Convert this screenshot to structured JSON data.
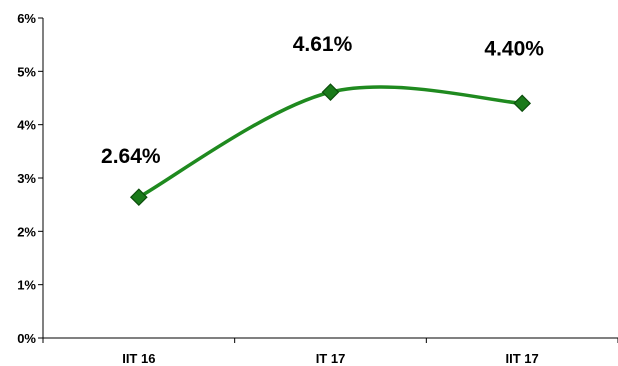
{
  "chart_data": {
    "type": "line",
    "categories": [
      "IIT 16",
      "IT 17",
      "IIT 17"
    ],
    "values": [
      2.64,
      4.61,
      4.4
    ],
    "data_labels": [
      "2.64%",
      "4.61%",
      "4.40%"
    ],
    "ylim": [
      0,
      6
    ],
    "y_ticks": [
      0,
      1,
      2,
      3,
      4,
      5,
      6
    ],
    "y_tick_labels": [
      "0%",
      "1%",
      "2%",
      "3%",
      "4%",
      "5%",
      "6%"
    ],
    "smooth": true,
    "marker": "diamond",
    "grid": false,
    "legend": "none",
    "colors": {
      "line": "#1f8a1f",
      "marker_fill": "#1a7a1a",
      "marker_stroke": "#0b4d0b",
      "axis": "#000000"
    }
  }
}
